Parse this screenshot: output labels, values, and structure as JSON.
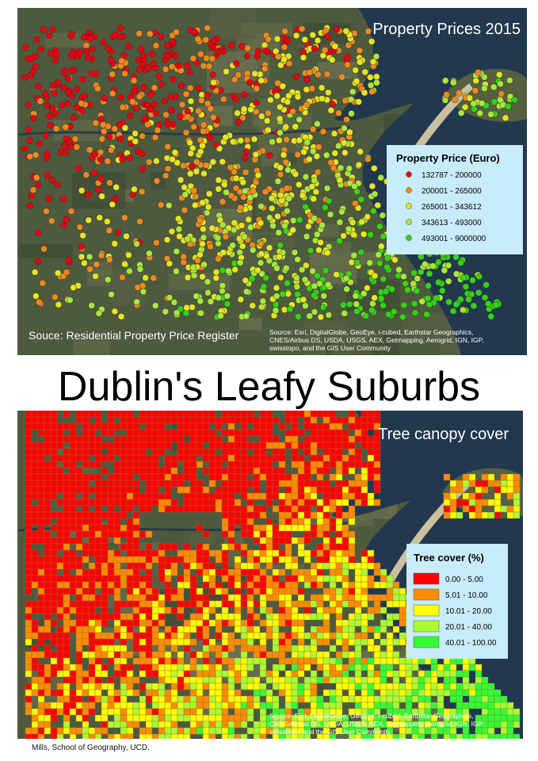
{
  "title": "Dublin's Leafy Suburbs",
  "maps": [
    {
      "title": "Property Prices 2015",
      "legend": {
        "title": "Property Price (Euro)",
        "items": [
          {
            "label": "132787 - 200000",
            "color": "#e8000b"
          },
          {
            "label": "200001 - 265000",
            "color": "#f08a1c"
          },
          {
            "label": "265001 - 343612",
            "color": "#e6e620"
          },
          {
            "label": "343613 - 493000",
            "color": "#a8e83a"
          },
          {
            "label": "493001 - 9000000",
            "color": "#33d414"
          }
        ]
      },
      "source": "Souce: Residential Property Price Register",
      "attribution": [
        "Source: Esri, DigitalGlobe, GeoEye, i-cubed, Earthstar Geographics,",
        "CNES/Airbus DS, USDA, USGS, AEX, Getmapping, Aerogrid, IGN, IGP,",
        "swisstopo, and the GIS User Community"
      ]
    },
    {
      "title": "Tree canopy cover",
      "legend": {
        "title": "Tree cover (%)",
        "items": [
          {
            "label": "0.00 - 5.00",
            "color": "#ff0000"
          },
          {
            "label": "5.01 - 10.00",
            "color": "#ff8c00"
          },
          {
            "label": "10.01 - 20.00",
            "color": "#ffff00"
          },
          {
            "label": "20.01 - 40.00",
            "color": "#aaff33"
          },
          {
            "label": "40.01 - 100.00",
            "color": "#33ff33"
          }
        ]
      },
      "attribution": [
        "Source: Esri, DigitalGlobe, GeoEye, i-cubed, Earthstar Geographics,",
        "CNES/Airbus DS, USDA, USGS, AEX, Getmapping, Aerogrid, IGN, IGP,",
        "swisstopo, and the GIS User Community"
      ]
    }
  ],
  "credit": "Mills, School of Geography, UCD."
}
